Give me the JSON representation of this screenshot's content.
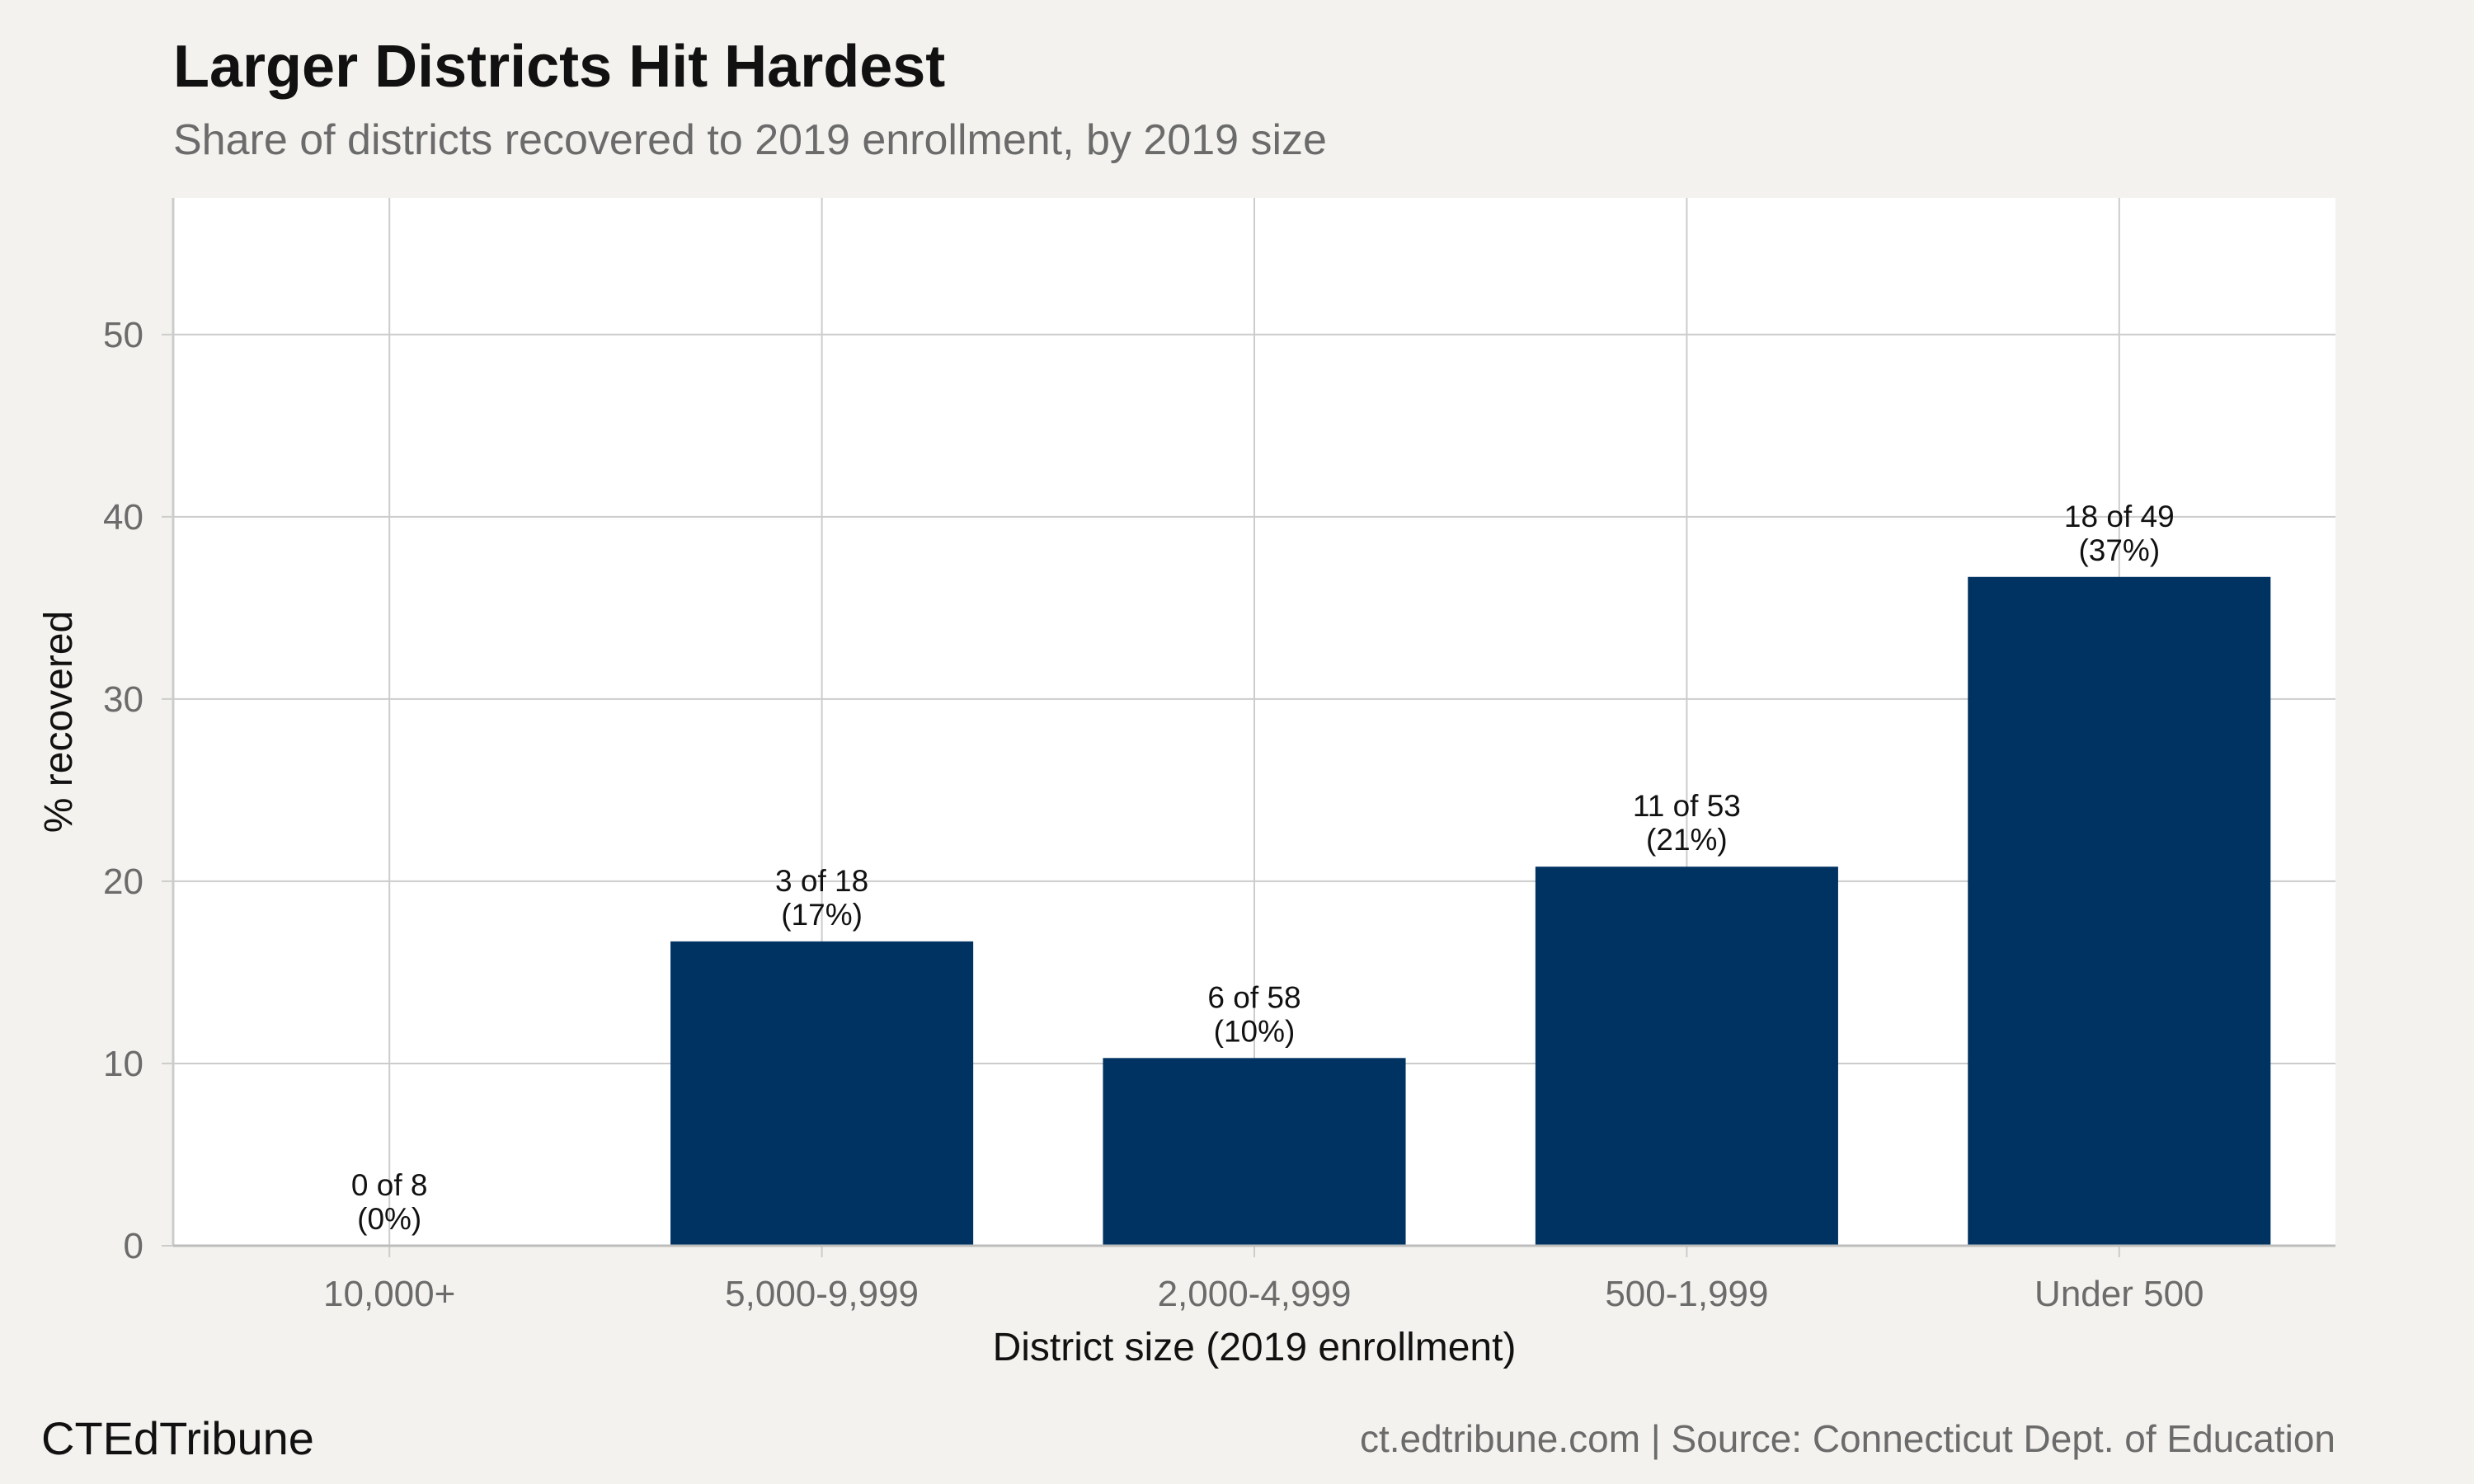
{
  "chart_data": {
    "type": "bar",
    "title": "Larger Districts Hit Hardest",
    "subtitle": "Share of districts recovered to 2019 enrollment, by 2019 size",
    "xlabel": "District size (2019 enrollment)",
    "ylabel": "% recovered",
    "categories": [
      "10,000+",
      "5,000-9,999",
      "2,000-4,999",
      "500-1,999",
      "Under 500"
    ],
    "values": [
      0,
      16.7,
      10.3,
      20.8,
      36.7
    ],
    "data_labels": [
      [
        "0 of 8",
        "(0%)"
      ],
      [
        "3 of 18",
        "(17%)"
      ],
      [
        "6 of 58",
        "(10%)"
      ],
      [
        "11 of 53",
        "(21%)"
      ],
      [
        "18 of 49",
        "(37%)"
      ]
    ],
    "ylim": [
      0,
      57.5
    ],
    "yticks": [
      0,
      10,
      20,
      30,
      40,
      50
    ],
    "grid": true,
    "bar_color": "#003262",
    "gridline_color": "#cccccc",
    "panel_color": "#ffffff",
    "background_color": "#f4f2ee"
  },
  "footer": {
    "brand": "CTEdTribune",
    "caption": "ct.edtribune.com | Source: Connecticut Dept. of Education"
  }
}
